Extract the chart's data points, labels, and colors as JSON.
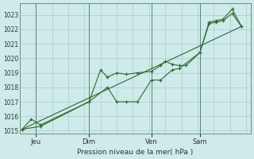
{
  "background_color": "#ceeaea",
  "grid_color": "#aacccc",
  "line_color": "#2d6a2d",
  "marker_color": "#2d6a2d",
  "title": "Pression niveau de la mer( hPa )",
  "ylim": [
    1014.8,
    1023.8
  ],
  "yticks": [
    1015,
    1016,
    1017,
    1018,
    1019,
    1020,
    1021,
    1022,
    1023
  ],
  "xlim": [
    0,
    100
  ],
  "day_positions": [
    7,
    30,
    57,
    78
  ],
  "day_labels": [
    "Jeu",
    "Dim",
    "Ven",
    "Sam"
  ],
  "series1_x": [
    1,
    5,
    9,
    30,
    35,
    38,
    42,
    46,
    51,
    57,
    61,
    63,
    66,
    69,
    72,
    78,
    82,
    85,
    88,
    92,
    96
  ],
  "series1_y": [
    1015.1,
    1015.8,
    1015.4,
    1017.0,
    1019.2,
    1018.7,
    1019.0,
    1018.9,
    1019.0,
    1019.1,
    1019.5,
    1019.8,
    1019.6,
    1019.5,
    1019.5,
    1020.4,
    1022.5,
    1022.6,
    1022.7,
    1023.4,
    1022.2
  ],
  "series2_x": [
    1,
    9,
    30,
    38,
    42,
    46,
    51,
    57,
    61,
    66,
    69,
    78,
    82,
    85,
    88,
    92,
    96
  ],
  "series2_y": [
    1015.1,
    1015.3,
    1017.0,
    1018.0,
    1017.0,
    1017.0,
    1017.0,
    1018.5,
    1018.5,
    1019.2,
    1019.3,
    1020.4,
    1022.4,
    1022.5,
    1022.6,
    1023.1,
    1022.2
  ],
  "series3_x": [
    1,
    96
  ],
  "series3_y": [
    1015.1,
    1022.2
  ]
}
